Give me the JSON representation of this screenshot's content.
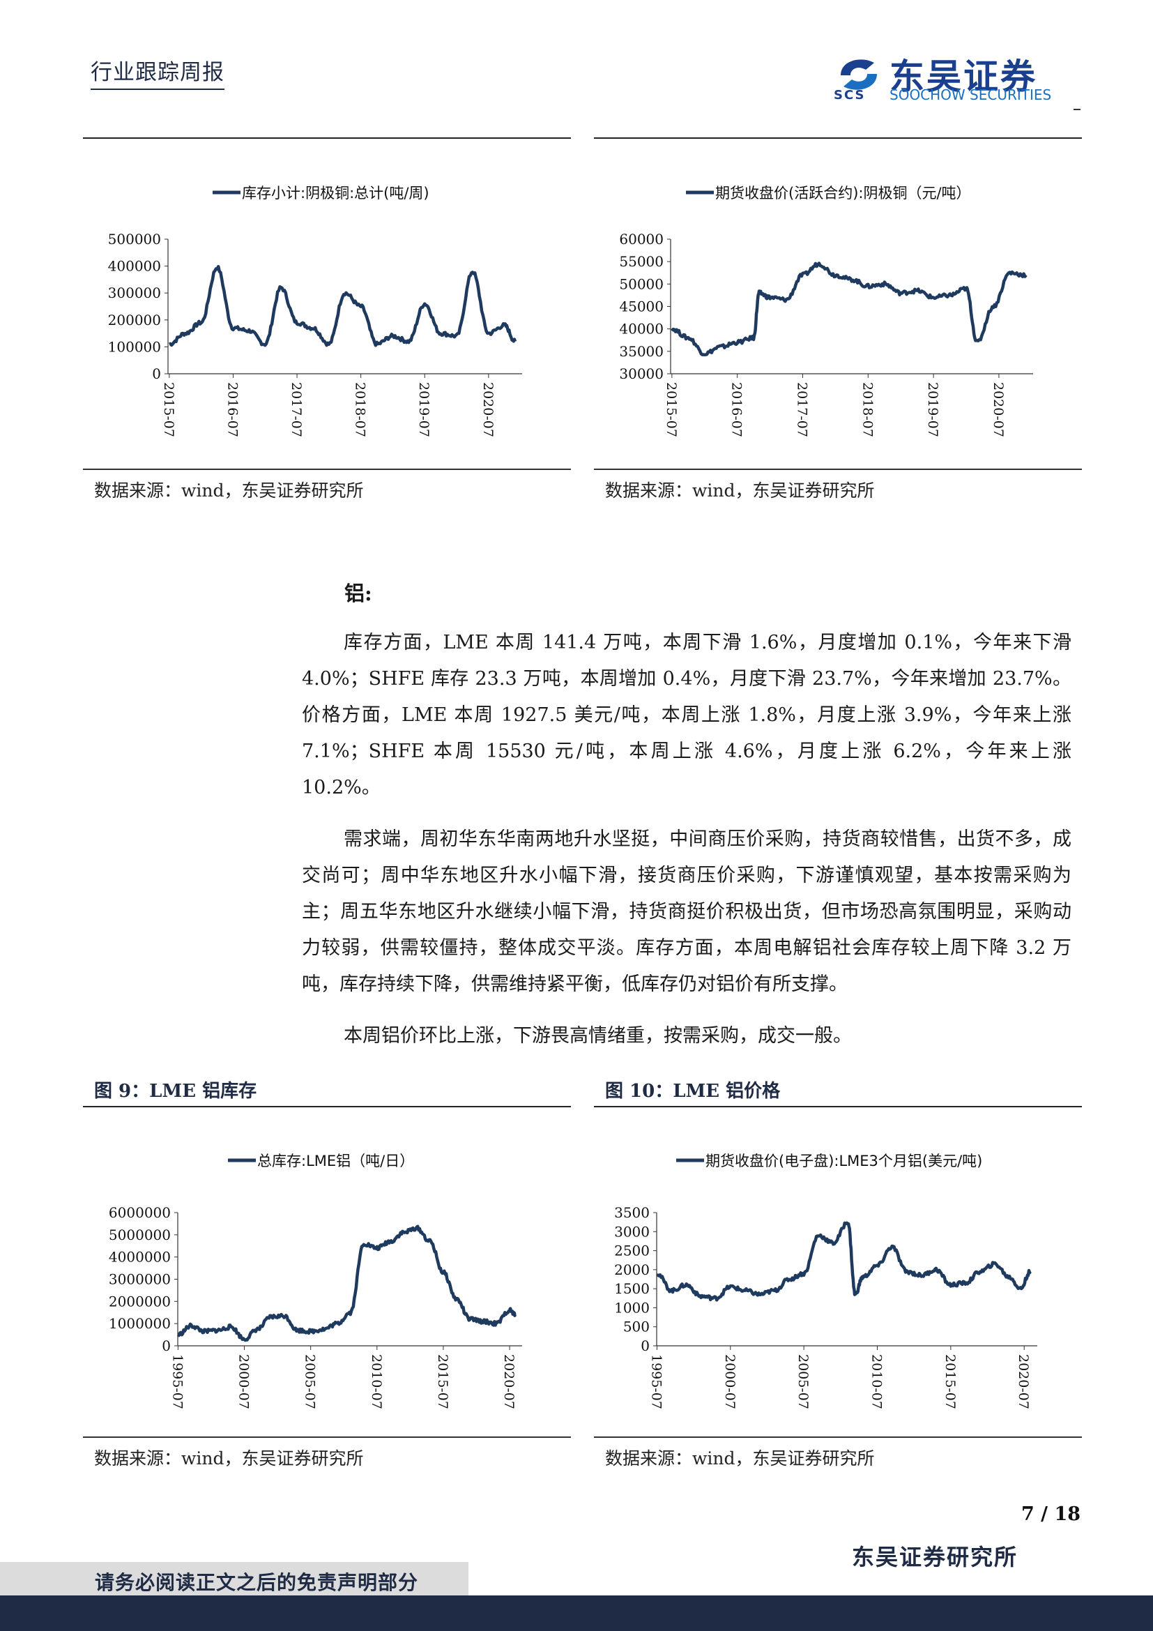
{
  "header": {
    "report_type": "行业跟踪周报",
    "logo_cn": "东吴证券",
    "logo_en": "SOOCHOW SECURITIES",
    "logo_abbr": "SCS"
  },
  "source_label": "数据来源：wind，东吴证券研究所",
  "section": {
    "heading": "铝:",
    "paragraphs": [
      "库存方面，LME 本周 141.4 万吨，本周下滑 1.6%，月度增加 0.1%，今年来下滑 4.0%；SHFE 库存 23.3 万吨，本周增加 0.4%，月度下滑 23.7%，今年来增加 23.7%。价格方面，LME 本周 1927.5 美元/吨，本周上涨 1.8%，月度上涨 3.9%，今年来上涨 7.1%；SHFE 本周 15530 元/吨，本周上涨 4.6%，月度上涨 6.2%，今年来上涨 10.2%。",
      "需求端，周初华东华南两地升水坚挺，中间商压价采购，持货商较惜售，出货不多，成交尚可；周中华东地区升水小幅下滑，接货商压价采购，下游谨慎观望，基本按需采购为主；周五华东地区升水继续小幅下滑，持货商挺价积极出货，但市场恐高氛围明显，采购动力较弱，供需较僵持，整体成交平淡。库存方面，本周电解铝社会库存较上周下降 3.2 万吨，库存持续下降，供需维持紧平衡，低库存仍对铝价有所支撑。",
      "本周铝价环比上涨，下游畏高情绪重，按需采购，成交一般。"
    ]
  },
  "figures": {
    "fig9_title": "图 9：LME 铝库存",
    "fig10_title": "图 10：LME 铝价格"
  },
  "chart_data": [
    {
      "type": "line",
      "series": [
        {
          "name": "库存小计:阴极铜:总计(吨/周)",
          "color": "#1f3a5f"
        }
      ],
      "x": [
        "2015-07",
        "2015-10",
        "2016-01",
        "2016-04",
        "2016-07",
        "2016-10",
        "2017-01",
        "2017-04",
        "2017-07",
        "2017-10",
        "2018-01",
        "2018-04",
        "2018-07",
        "2018-10",
        "2019-01",
        "2019-04",
        "2019-07",
        "2019-10",
        "2020-01",
        "2020-04",
        "2020-07",
        "2020-10",
        "2020-12"
      ],
      "values": [
        110000,
        150000,
        190000,
        395000,
        170000,
        160000,
        110000,
        320000,
        190000,
        170000,
        110000,
        300000,
        250000,
        110000,
        140000,
        120000,
        260000,
        150000,
        140000,
        380000,
        150000,
        180000,
        120000
      ],
      "yticks": [
        "500000",
        "400000",
        "300000",
        "200000",
        "100000",
        "0"
      ],
      "xticks": [
        "2015-07",
        "2016-07",
        "2017-07",
        "2018-07",
        "2019-07",
        "2020-07"
      ],
      "ylim": [
        0,
        500000
      ]
    },
    {
      "type": "line",
      "series": [
        {
          "name": "期货收盘价(活跃合约):阴极铜（元/吨）",
          "color": "#1f3a5f"
        }
      ],
      "x": [
        "2015-07",
        "2015-10",
        "2016-01",
        "2016-04",
        "2016-07",
        "2016-10",
        "2016-11",
        "2017-01",
        "2017-04",
        "2017-07",
        "2017-10",
        "2018-01",
        "2018-04",
        "2018-07",
        "2018-10",
        "2019-01",
        "2019-04",
        "2019-07",
        "2019-10",
        "2020-01",
        "2020-03",
        "2020-06",
        "2020-09",
        "2020-12"
      ],
      "values": [
        40000,
        38000,
        34500,
        36000,
        37000,
        38000,
        48000,
        47000,
        46500,
        52000,
        54500,
        52000,
        51000,
        49500,
        50000,
        48000,
        48500,
        47000,
        47500,
        49000,
        37000,
        45000,
        52500,
        52000
      ],
      "yticks": [
        "60000",
        "55000",
        "50000",
        "45000",
        "40000",
        "35000",
        "30000"
      ],
      "xticks": [
        "2015-07",
        "2016-07",
        "2017-07",
        "2018-07",
        "2019-07",
        "2020-07"
      ],
      "ylim": [
        30000,
        60000
      ]
    },
    {
      "type": "line",
      "series": [
        {
          "name": "总库存:LME铝（吨/日）",
          "color": "#1f3a5f"
        }
      ],
      "x": [
        "1995-07",
        "1996-07",
        "1997-07",
        "1998-07",
        "1999-07",
        "2000-07",
        "2001-07",
        "2002-07",
        "2003-07",
        "2004-07",
        "2005-07",
        "2006-07",
        "2007-07",
        "2008-07",
        "2009-07",
        "2010-07",
        "2011-07",
        "2012-07",
        "2013-07",
        "2014-07",
        "2015-07",
        "2016-07",
        "2017-07",
        "2018-07",
        "2019-07",
        "2020-07",
        "2020-12"
      ],
      "values": [
        500000,
        900000,
        650000,
        700000,
        850000,
        300000,
        750000,
        1300000,
        1350000,
        700000,
        650000,
        750000,
        1000000,
        1500000,
        4600000,
        4400000,
        4700000,
        5100000,
        5300000,
        4700000,
        3300000,
        2100000,
        1200000,
        1100000,
        1000000,
        1600000,
        1400000
      ],
      "yticks": [
        "6000000",
        "5000000",
        "4000000",
        "3000000",
        "2000000",
        "1000000",
        "0"
      ],
      "xticks": [
        "1995-07",
        "2000-07",
        "2005-07",
        "2010-07",
        "2015-07",
        "2020-07"
      ],
      "ylim": [
        0,
        6000000
      ]
    },
    {
      "type": "line",
      "series": [
        {
          "name": "期货收盘价(电子盘):LME3个月铝(美元/吨)",
          "color": "#1f3a5f"
        }
      ],
      "x": [
        "1995-07",
        "1996-07",
        "1997-07",
        "1998-07",
        "1999-07",
        "2000-07",
        "2001-07",
        "2002-07",
        "2003-07",
        "2004-07",
        "2005-07",
        "2006-07",
        "2007-07",
        "2008-07",
        "2009-01",
        "2009-07",
        "2010-07",
        "2011-07",
        "2012-07",
        "2013-07",
        "2014-07",
        "2015-07",
        "2016-07",
        "2017-07",
        "2018-07",
        "2019-07",
        "2020-04",
        "2020-12"
      ],
      "values": [
        1900,
        1450,
        1600,
        1300,
        1250,
        1550,
        1450,
        1350,
        1450,
        1750,
        1900,
        2900,
        2700,
        3250,
        1350,
        1800,
        2100,
        2600,
        1950,
        1850,
        2000,
        1600,
        1650,
        1950,
        2150,
        1800,
        1500,
        1950
      ],
      "yticks": [
        "3500",
        "3000",
        "2500",
        "2000",
        "1500",
        "1000",
        "500",
        "0"
      ],
      "xticks": [
        "1995-07",
        "2000-07",
        "2005-07",
        "2010-07",
        "2015-07",
        "2020-07"
      ],
      "ylim": [
        0,
        3500
      ]
    }
  ],
  "page": {
    "number": "7 / 18",
    "footer_org": "东吴证券研究所",
    "disclaimer": "请务必阅读正文之后的免责声明部分"
  }
}
